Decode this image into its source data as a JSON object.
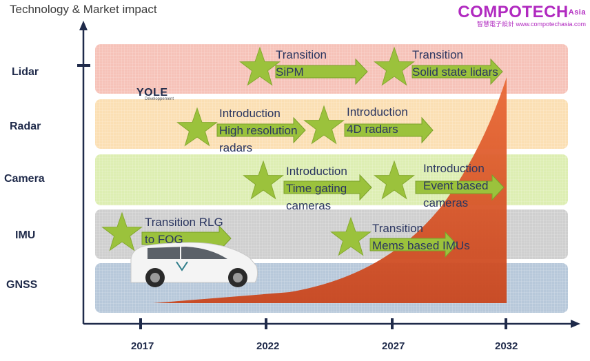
{
  "title": "Technology & Market impact",
  "brand": {
    "name": "COMPOTECH",
    "region": "Asia",
    "subtitle": "智慧電子設計 www.compotechasia.com"
  },
  "logo": {
    "name": "YOLE",
    "tagline": "Développement"
  },
  "rows": [
    {
      "label": "Lidar",
      "color": "#f6c2b8"
    },
    {
      "label": "Radar",
      "color": "#fbdfb3"
    },
    {
      "label": "Camera",
      "color": "#ddeeb2"
    },
    {
      "label": "IMU",
      "color": "#cfcfcf"
    },
    {
      "label": "GNSS",
      "color": "#b7c8da"
    }
  ],
  "years": [
    "2017",
    "2022",
    "2027",
    "2032"
  ],
  "callouts": [
    {
      "row": "Lidar",
      "lines": [
        "Transition",
        "SiPM"
      ]
    },
    {
      "row": "Lidar",
      "lines": [
        "Transition",
        "Solid state lidars"
      ]
    },
    {
      "row": "Radar",
      "lines": [
        "Introduction",
        "High resolution",
        "radars"
      ]
    },
    {
      "row": "Radar",
      "lines": [
        "Introduction",
        "4D radars"
      ]
    },
    {
      "row": "Camera",
      "lines": [
        "Introduction",
        "Time gating",
        "cameras"
      ]
    },
    {
      "row": "Camera",
      "lines": [
        "Introduction",
        "Event based",
        "cameras"
      ]
    },
    {
      "row": "IMU",
      "lines": [
        "Transition RLG",
        "to FOG"
      ]
    },
    {
      "row": "IMU",
      "lines": [
        "Transition",
        "Mems based IMUs"
      ]
    }
  ],
  "colors": {
    "star": "#9bc23c",
    "arrow": "#9bc23c",
    "growth": "#de5a2c",
    "axis": "#1f2a4a"
  },
  "icons": [
    "star-icon",
    "arrow-icon",
    "car-image"
  ]
}
